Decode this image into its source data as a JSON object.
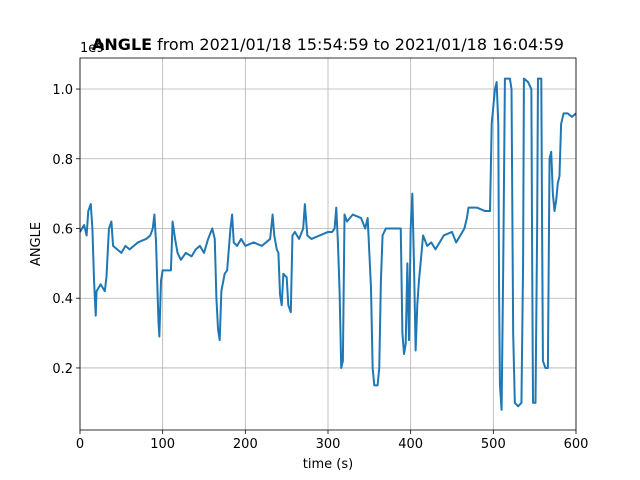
{
  "chart_data": {
    "type": "line",
    "title_bold": "ANGLE",
    "title": "from 2021/01/18 15:54:59 to 2021/01/18 16:04:59",
    "x_label": "time (s)",
    "y_label": "ANGLE",
    "y_offset_label": "1e9",
    "xlim": [
      0,
      600
    ],
    "ylim": [
      0.022,
      1.089
    ],
    "xticks": [
      0,
      100,
      200,
      300,
      400,
      500,
      600
    ],
    "yticks": [
      0.2,
      0.4,
      0.6,
      0.8,
      {
        "value": 1,
        "label": "1.0"
      }
    ],
    "grid": true,
    "series": [
      {
        "name": "ANGLE",
        "color": "#1f77b4",
        "x": [
          0,
          5,
          8,
          10,
          13,
          15,
          17,
          19,
          20,
          25,
          30,
          32,
          35,
          38,
          40,
          45,
          50,
          55,
          60,
          70,
          80,
          85,
          88,
          90,
          92,
          94,
          95,
          96,
          98,
          100,
          105,
          110,
          112,
          115,
          118,
          122,
          128,
          135,
          140,
          145,
          150,
          155,
          160,
          163,
          165,
          167,
          169,
          171,
          175,
          178,
          182,
          184,
          186,
          190,
          195,
          200,
          210,
          220,
          230,
          233,
          235,
          238,
          240,
          242,
          244,
          246,
          250,
          252,
          255,
          257,
          260,
          265,
          270,
          272,
          275,
          280,
          290,
          300,
          305,
          308,
          310,
          312,
          314,
          316,
          318,
          320,
          323,
          330,
          340,
          345,
          348,
          350,
          352,
          354,
          356,
          360,
          362,
          364,
          366,
          370,
          380,
          385,
          388,
          390,
          392,
          394,
          396,
          398,
          400,
          402,
          404,
          406,
          408,
          410,
          412,
          415,
          420,
          425,
          430,
          440,
          450,
          455,
          460,
          465,
          468,
          470,
          480,
          490,
          496,
          498,
          500,
          502,
          504,
          506,
          507,
          508,
          510,
          512,
          514,
          520,
          522,
          524,
          526,
          530,
          534,
          536,
          537,
          542,
          546,
          547,
          548,
          551,
          553,
          554,
          558,
          559,
          560,
          563,
          566,
          567,
          568,
          570,
          572,
          574,
          576,
          578,
          580,
          582,
          585,
          590,
          595,
          600
        ],
        "values": [
          0.59,
          0.61,
          0.58,
          0.65,
          0.67,
          0.6,
          0.45,
          0.35,
          0.42,
          0.44,
          0.42,
          0.46,
          0.6,
          0.62,
          0.55,
          0.54,
          0.53,
          0.55,
          0.54,
          0.56,
          0.57,
          0.58,
          0.6,
          0.64,
          0.56,
          0.4,
          0.33,
          0.29,
          0.45,
          0.48,
          0.48,
          0.48,
          0.62,
          0.57,
          0.53,
          0.51,
          0.53,
          0.52,
          0.54,
          0.55,
          0.53,
          0.57,
          0.6,
          0.57,
          0.4,
          0.31,
          0.28,
          0.42,
          0.47,
          0.48,
          0.6,
          0.64,
          0.56,
          0.55,
          0.57,
          0.55,
          0.56,
          0.55,
          0.57,
          0.64,
          0.58,
          0.54,
          0.53,
          0.41,
          0.38,
          0.47,
          0.46,
          0.38,
          0.36,
          0.58,
          0.59,
          0.57,
          0.6,
          0.67,
          0.58,
          0.57,
          0.58,
          0.59,
          0.59,
          0.6,
          0.66,
          0.56,
          0.42,
          0.2,
          0.22,
          0.64,
          0.62,
          0.64,
          0.63,
          0.6,
          0.63,
          0.53,
          0.43,
          0.2,
          0.15,
          0.15,
          0.2,
          0.45,
          0.58,
          0.6,
          0.6,
          0.6,
          0.6,
          0.3,
          0.24,
          0.27,
          0.5,
          0.28,
          0.6,
          0.7,
          0.5,
          0.25,
          0.38,
          0.45,
          0.5,
          0.58,
          0.55,
          0.56,
          0.54,
          0.58,
          0.59,
          0.56,
          0.58,
          0.6,
          0.63,
          0.66,
          0.66,
          0.65,
          0.65,
          0.9,
          0.95,
          1.0,
          1.02,
          0.9,
          0.4,
          0.15,
          0.08,
          0.5,
          1.03,
          1.03,
          1.0,
          0.3,
          0.1,
          0.09,
          0.1,
          0.5,
          1.03,
          1.02,
          1.0,
          0.5,
          0.1,
          0.1,
          0.6,
          1.03,
          1.03,
          0.6,
          0.22,
          0.2,
          0.2,
          0.5,
          0.8,
          0.82,
          0.7,
          0.65,
          0.68,
          0.73,
          0.75,
          0.9,
          0.93,
          0.93,
          0.92,
          0.93
        ]
      }
    ]
  }
}
